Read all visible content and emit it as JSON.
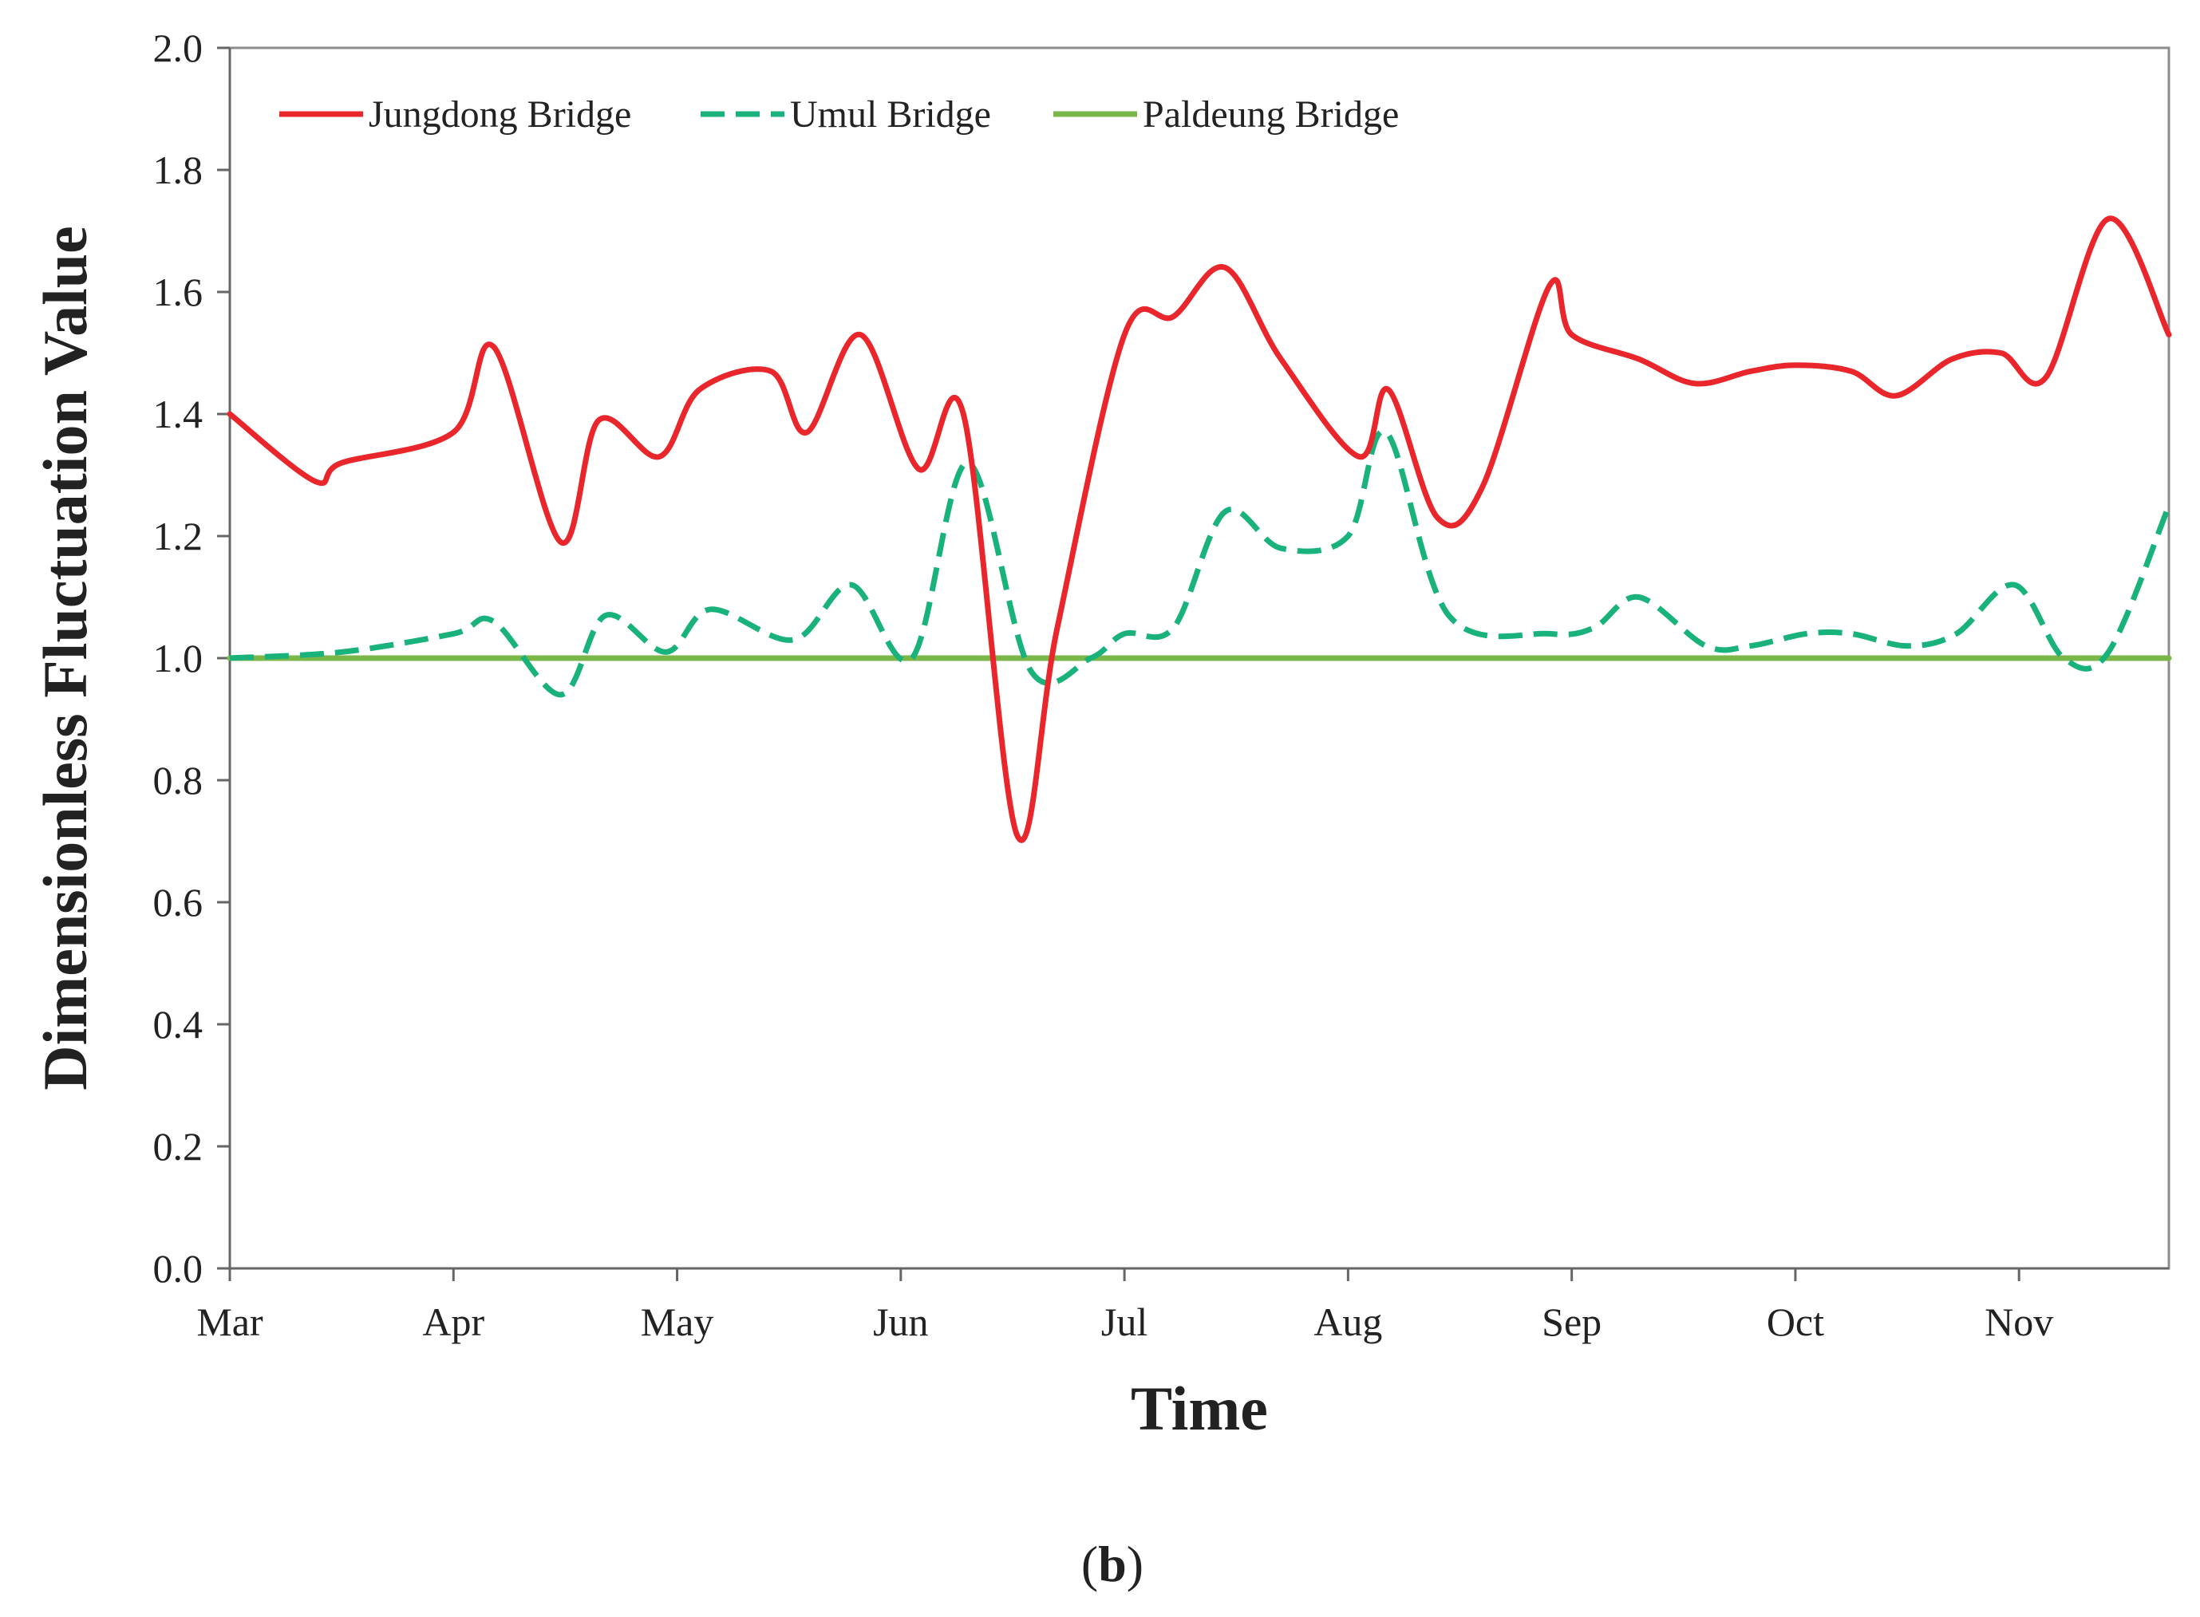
{
  "chart_data": {
    "type": "line",
    "title": "",
    "xlabel": "Time",
    "ylabel": "Dimensionless Fluctuation Value",
    "x_tick_labels": [
      "Mar",
      "Apr",
      "May",
      "Jun",
      "Jul",
      "Aug",
      "Sep",
      "Oct",
      "Nov"
    ],
    "x_tick_positions": [
      0,
      1,
      2,
      3,
      4,
      5,
      6,
      7,
      8
    ],
    "xlim": [
      0,
      8.67
    ],
    "ylim": [
      0,
      2.0
    ],
    "y_ticks": [
      0.0,
      0.2,
      0.4,
      0.6,
      0.8,
      1.0,
      1.2,
      1.4,
      1.6,
      1.8,
      2.0
    ],
    "y_tick_labels": [
      "0.0",
      "0.2",
      "0.4",
      "0.6",
      "0.8",
      "1.0",
      "1.2",
      "1.4",
      "1.6",
      "1.8",
      "2.0"
    ],
    "grid": false,
    "legend_position": "top-left",
    "series": [
      {
        "name": "Jungdong Bridge",
        "color": "#e8262b",
        "style": "solid",
        "x": [
          0,
          0.38,
          0.5,
          1.0,
          1.18,
          1.48,
          1.65,
          1.92,
          2.1,
          2.42,
          2.58,
          2.82,
          3.08,
          3.28,
          3.52,
          3.7,
          4.0,
          4.22,
          4.45,
          4.7,
          5.05,
          5.18,
          5.4,
          5.6,
          5.9,
          6.0,
          6.3,
          6.55,
          6.8,
          7.0,
          7.25,
          7.45,
          7.7,
          7.92,
          8.12,
          8.4,
          8.67
        ],
        "values": [
          1.4,
          1.29,
          1.32,
          1.37,
          1.51,
          1.19,
          1.39,
          1.33,
          1.44,
          1.47,
          1.37,
          1.53,
          1.31,
          1.4,
          0.71,
          1.05,
          1.53,
          1.56,
          1.64,
          1.49,
          1.33,
          1.44,
          1.23,
          1.28,
          1.61,
          1.53,
          1.49,
          1.45,
          1.47,
          1.48,
          1.47,
          1.43,
          1.49,
          1.5,
          1.46,
          1.72,
          1.53
        ]
      },
      {
        "name": "Umul Bridge",
        "color": "#19b27a",
        "style": "dashed",
        "x": [
          0,
          0.5,
          1.0,
          1.18,
          1.48,
          1.68,
          1.95,
          2.15,
          2.52,
          2.78,
          3.05,
          3.3,
          3.58,
          3.85,
          4.0,
          4.22,
          4.45,
          4.7,
          5.0,
          5.17,
          5.45,
          5.9,
          6.1,
          6.3,
          6.6,
          6.8,
          7.05,
          7.25,
          7.5,
          7.72,
          7.98,
          8.2,
          8.4,
          8.67
        ],
        "values": [
          1.0,
          1.01,
          1.04,
          1.06,
          0.94,
          1.07,
          1.01,
          1.08,
          1.03,
          1.12,
          1.0,
          1.32,
          0.98,
          1.0,
          1.04,
          1.05,
          1.24,
          1.18,
          1.2,
          1.37,
          1.07,
          1.04,
          1.05,
          1.1,
          1.02,
          1.02,
          1.04,
          1.04,
          1.02,
          1.04,
          1.12,
          1.0,
          1.01,
          1.25
        ]
      },
      {
        "name": "Paldeung Bridge",
        "color": "#7ab648",
        "style": "solid",
        "x": [
          0,
          8.67
        ],
        "values": [
          1.0,
          1.0
        ]
      }
    ]
  },
  "caption": {
    "open_paren": "(",
    "letter": "b",
    "close_paren": ")"
  }
}
